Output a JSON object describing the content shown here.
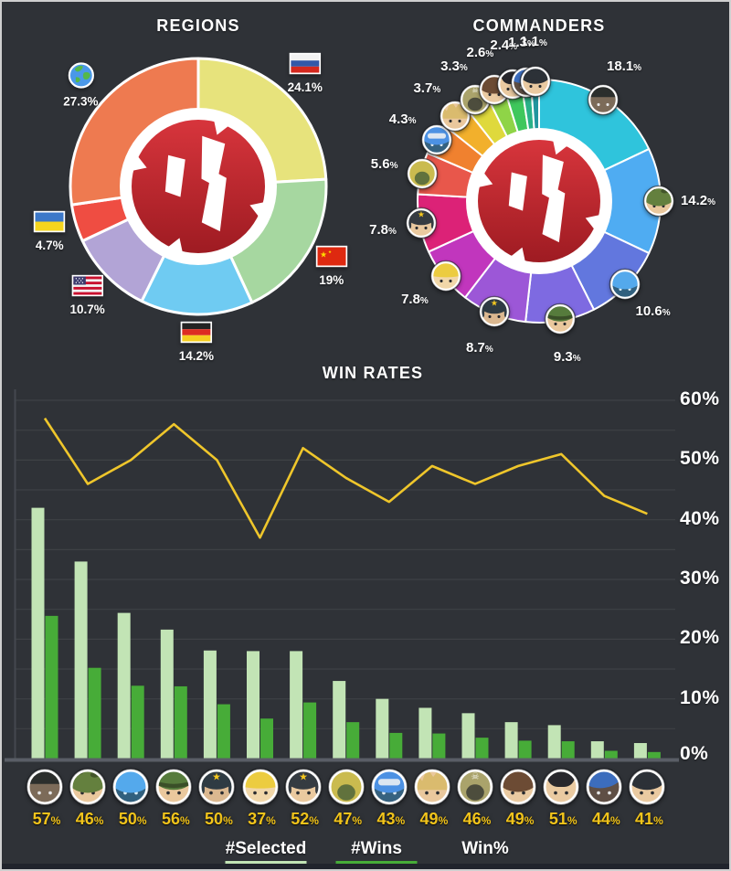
{
  "theme": {
    "background": "#2F3237",
    "border": "#CFCFCF",
    "text": "#FFFFFF",
    "grid": "#3C4047",
    "axis_line": "#44484F",
    "baseline": "#5A5E66",
    "accent_yellow": "#F2C41B",
    "footer_strip": "#21242C",
    "logo_red": "#C4242C"
  },
  "chart_data": [
    {
      "type": "pie",
      "title": "REGIONS",
      "legend_position": "around",
      "slices": [
        {
          "label": "Russia",
          "icon": "russia-flag",
          "value": 24.1,
          "value_label": "24.1%",
          "color": "#E7E37C"
        },
        {
          "label": "China",
          "icon": "china-flag",
          "value": 19,
          "value_label": "19%",
          "color": "#A6D7A0"
        },
        {
          "label": "Germany",
          "icon": "germany-flag",
          "value": 14.2,
          "value_label": "14.2%",
          "color": "#6FCBF2"
        },
        {
          "label": "USA",
          "icon": "usa-flag",
          "value": 10.7,
          "value_label": "10.7%",
          "color": "#B2A4D6"
        },
        {
          "label": "Ukraine",
          "icon": "ukraine-flag",
          "value": 4.7,
          "value_label": "4.7%",
          "color": "#EF4D42"
        },
        {
          "label": "World",
          "icon": "world-globe",
          "value": 27.3,
          "value_label": "27.3%",
          "color": "#EE7A50"
        }
      ]
    },
    {
      "type": "pie",
      "title": "COMMANDERS",
      "legend_position": "around",
      "slices": [
        {
          "label": "top-hat",
          "icon": "top-hat",
          "value": 18.1,
          "value_label": "18.1%",
          "color": "#2FC4DC"
        },
        {
          "label": "camo-hat",
          "icon": "camo-hat",
          "value": 14.2,
          "value_label": "14.2%",
          "color": "#4FACF2"
        },
        {
          "label": "blue-helmet",
          "icon": "blue-helmet",
          "value": 10.6,
          "value_label": "10.6%",
          "color": "#6277DE"
        },
        {
          "label": "green-helmet",
          "icon": "green-helmet",
          "value": 9.3,
          "value_label": "9.3%",
          "color": "#7E6AE1"
        },
        {
          "label": "ushanka-star",
          "icon": "ushanka-star",
          "value": 8.7,
          "value_label": "8.7%",
          "color": "#9C57D7"
        },
        {
          "label": "yellow-hard-hat",
          "icon": "yellow-hard-hat",
          "value": 7.8,
          "value_label": "7.8%",
          "color": "#C136BD"
        },
        {
          "label": "black-ushanka",
          "icon": "black-ushanka",
          "value": 7.8,
          "value_label": "7.8%",
          "color": "#DC2277"
        },
        {
          "label": "gas-mask-hood",
          "icon": "gas-mask-hood",
          "value": 5.6,
          "value_label": "5.6%",
          "color": "#E8574B"
        },
        {
          "label": "visor-helmet",
          "icon": "visor-helmet",
          "value": 4.3,
          "value_label": "4.3%",
          "color": "#F0812F"
        },
        {
          "label": "blonde-hair",
          "icon": "blonde-hair",
          "value": 3.7,
          "value_label": "3.7%",
          "color": "#F2B02C"
        },
        {
          "label": "skull-hood",
          "icon": "skull-hood",
          "value": 3.3,
          "value_label": "3.3%",
          "color": "#DFD93C"
        },
        {
          "label": "fur-hat",
          "icon": "fur-hat",
          "value": 2.6,
          "value_label": "2.6%",
          "color": "#8FD447"
        },
        {
          "label": "bearskin-hat",
          "icon": "bearskin-hat",
          "value": 2.4,
          "value_label": "2.4%",
          "color": "#3FC75C"
        },
        {
          "label": "blue-beret",
          "icon": "blue-beret",
          "value": 1.3,
          "value_label": "1.3%",
          "color": "#2AB188"
        },
        {
          "label": "black-cap",
          "icon": "black-cap",
          "value": 1.1,
          "value_label": "1.1%",
          "color": "#22959E"
        }
      ]
    },
    {
      "type": "bar+line",
      "title": "WIN RATES",
      "ylim": [
        0,
        62
      ],
      "grid_step": 5,
      "y_ticks": [
        "60%",
        "50%",
        "40%",
        "30%",
        "20%",
        "10%",
        "0%"
      ],
      "categories": [
        "top-hat",
        "camo-hat",
        "blue-helmet",
        "green-helmet",
        "ushanka-star",
        "yellow-hard-hat",
        "black-ushanka",
        "gas-mask-hood",
        "visor-helmet",
        "blonde-hair",
        "skull-hood",
        "fur-hat",
        "bearskin-hat",
        "blue-beret",
        "black-cap"
      ],
      "series": [
        {
          "name": "#Selected",
          "type": "bar",
          "color": "#C2E4B5",
          "values": [
            42,
            33,
            24.4,
            21.6,
            18.1,
            18,
            18,
            13,
            10,
            8.5,
            7.6,
            6.1,
            5.6,
            2.9,
            2.6
          ]
        },
        {
          "name": "#Wins",
          "type": "bar",
          "color": "#47AC38",
          "values": [
            23.9,
            15.2,
            12.2,
            12.1,
            9.1,
            6.7,
            9.4,
            6.1,
            4.3,
            4.2,
            3.5,
            3,
            2.9,
            1.3,
            1.1
          ]
        },
        {
          "name": "Win%",
          "type": "line",
          "color": "#EFC62B",
          "values": [
            57,
            46,
            50,
            56,
            50,
            37,
            52,
            47,
            43,
            49,
            46,
            49,
            51,
            44,
            41
          ]
        }
      ],
      "win_labels": [
        "57%",
        "46%",
        "50%",
        "56%",
        "50%",
        "37%",
        "52%",
        "47%",
        "43%",
        "49%",
        "46%",
        "49%",
        "51%",
        "44%",
        "41%"
      ]
    }
  ],
  "avatars": {
    "top-hat": {
      "variant": "tophat",
      "hat": "#2B2E2C",
      "skin": "#7C6B59",
      "eyes": "#E6E6E6",
      "accent": "none"
    },
    "camo-hat": {
      "variant": "dome2",
      "hat": "#64803E",
      "skin": "#EAC89D",
      "eyes": "#2A2C30",
      "accent": "spots"
    },
    "blue-helmet": {
      "variant": "dome2",
      "hat": "#54A9EC",
      "skin": "#31607E",
      "eyes": "#D8ECF5",
      "accent": "none"
    },
    "green-helmet": {
      "variant": "dome",
      "hat": "#567B3C",
      "skin": "#EAC89D",
      "eyes": "#2A2C30",
      "accent": "band"
    },
    "ushanka-star": {
      "variant": "ushanka",
      "hat": "#2F3B43",
      "skin": "#DBB890",
      "eyes": "#2A2C30",
      "accent": "star"
    },
    "yellow-hard-hat": {
      "variant": "pointed",
      "hat": "#ECCC40",
      "skin": "#F1D7A9",
      "eyes": "#2A2C30",
      "accent": "none"
    },
    "black-ushanka": {
      "variant": "ushanka",
      "hat": "#353B41",
      "skin": "#EAC99F",
      "eyes": "#2A2C30",
      "accent": "star"
    },
    "gas-mask-hood": {
      "variant": "hood",
      "hat": "#CABB4F",
      "skin": "#61723D",
      "eyes": "#D8E8C8",
      "accent": "none"
    },
    "visor-helmet": {
      "variant": "dome2",
      "hat": "#4C91E3",
      "skin": "#366280",
      "eyes": "#DDE8F0",
      "accent": "goggles"
    },
    "blonde-hair": {
      "variant": "hair",
      "hat": "#DABB6E",
      "skin": "#EAC89D",
      "eyes": "#2A2C30",
      "accent": "none"
    },
    "skull-hood": {
      "variant": "hood",
      "hat": "#AAA36B",
      "skin": "#4D4D3D",
      "eyes": "#D8D8C8",
      "accent": "skull"
    },
    "fur-hat": {
      "variant": "fur",
      "hat": "#6C4B34",
      "skin": "#EACAA1",
      "eyes": "#2A2C30",
      "accent": "none"
    },
    "bearskin-hat": {
      "variant": "bearskin",
      "hat": "#27272C",
      "skin": "#EACAA1",
      "eyes": "#2A2C30",
      "accent": "none"
    },
    "blue-beret": {
      "variant": "beret",
      "hat": "#3C6DBD",
      "skin": "#5F4F45",
      "eyes": "#E6E6E6",
      "accent": "none"
    },
    "black-cap": {
      "variant": "cap",
      "hat": "#2C3137",
      "skin": "#EACAA1",
      "eyes": "#2A2C30",
      "accent": "none"
    }
  }
}
